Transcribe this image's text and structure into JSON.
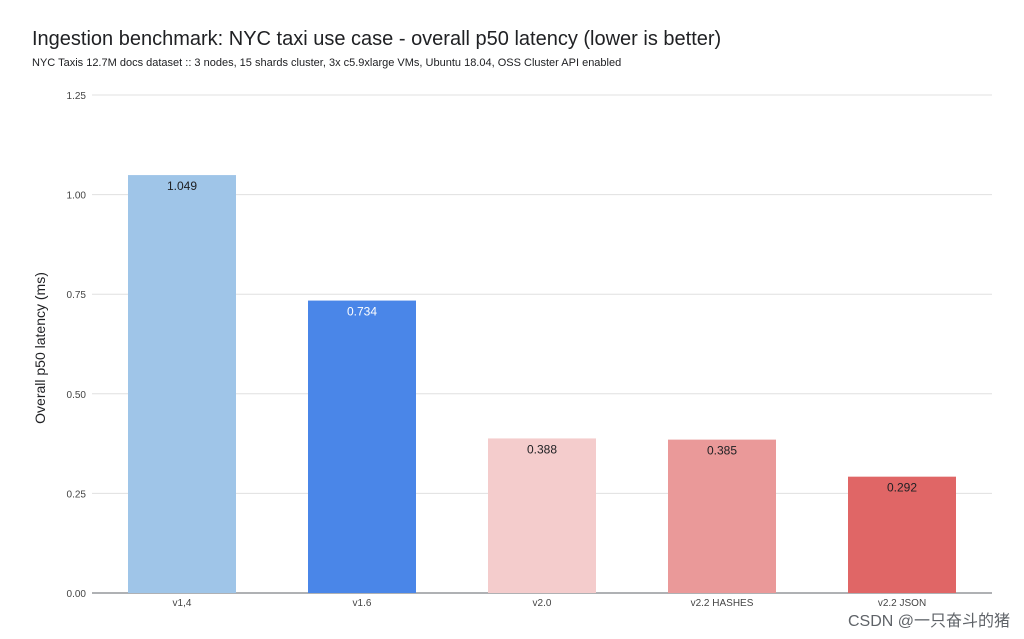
{
  "chart_data": {
    "type": "bar",
    "title": "Ingestion benchmark: NYC taxi use case - overall p50 latency (lower is better)",
    "subtitle": "NYC Taxis 12.7M docs dataset :: 3 nodes, 15 shards cluster, 3x c5.9xlarge VMs, Ubuntu 18.04, OSS Cluster API enabled",
    "xlabel": "",
    "ylabel": "Overall p50 latency (ms)",
    "categories": [
      "v1,4",
      "v1.6",
      "v2.0",
      "v2.2 HASHES",
      "v2.2 JSON"
    ],
    "values": [
      1.049,
      0.734,
      0.388,
      0.385,
      0.292
    ],
    "data_labels": [
      "1.049",
      "0.734",
      "0.388",
      "0.385",
      "0.292"
    ],
    "bar_colors": [
      "#9fc5e8",
      "#4a86e8",
      "#f4cccc",
      "#ea9999",
      "#e06666"
    ],
    "label_colors": [
      "#202124",
      "#ffffff",
      "#202124",
      "#202124",
      "#202124"
    ],
    "ylim": [
      0,
      1.25
    ],
    "yticks": [
      "0.00",
      "0.25",
      "0.50",
      "0.75",
      "1.00",
      "1.25"
    ],
    "grid": true,
    "legend": "none"
  },
  "watermark": "CSDN @一只奋斗的猪"
}
